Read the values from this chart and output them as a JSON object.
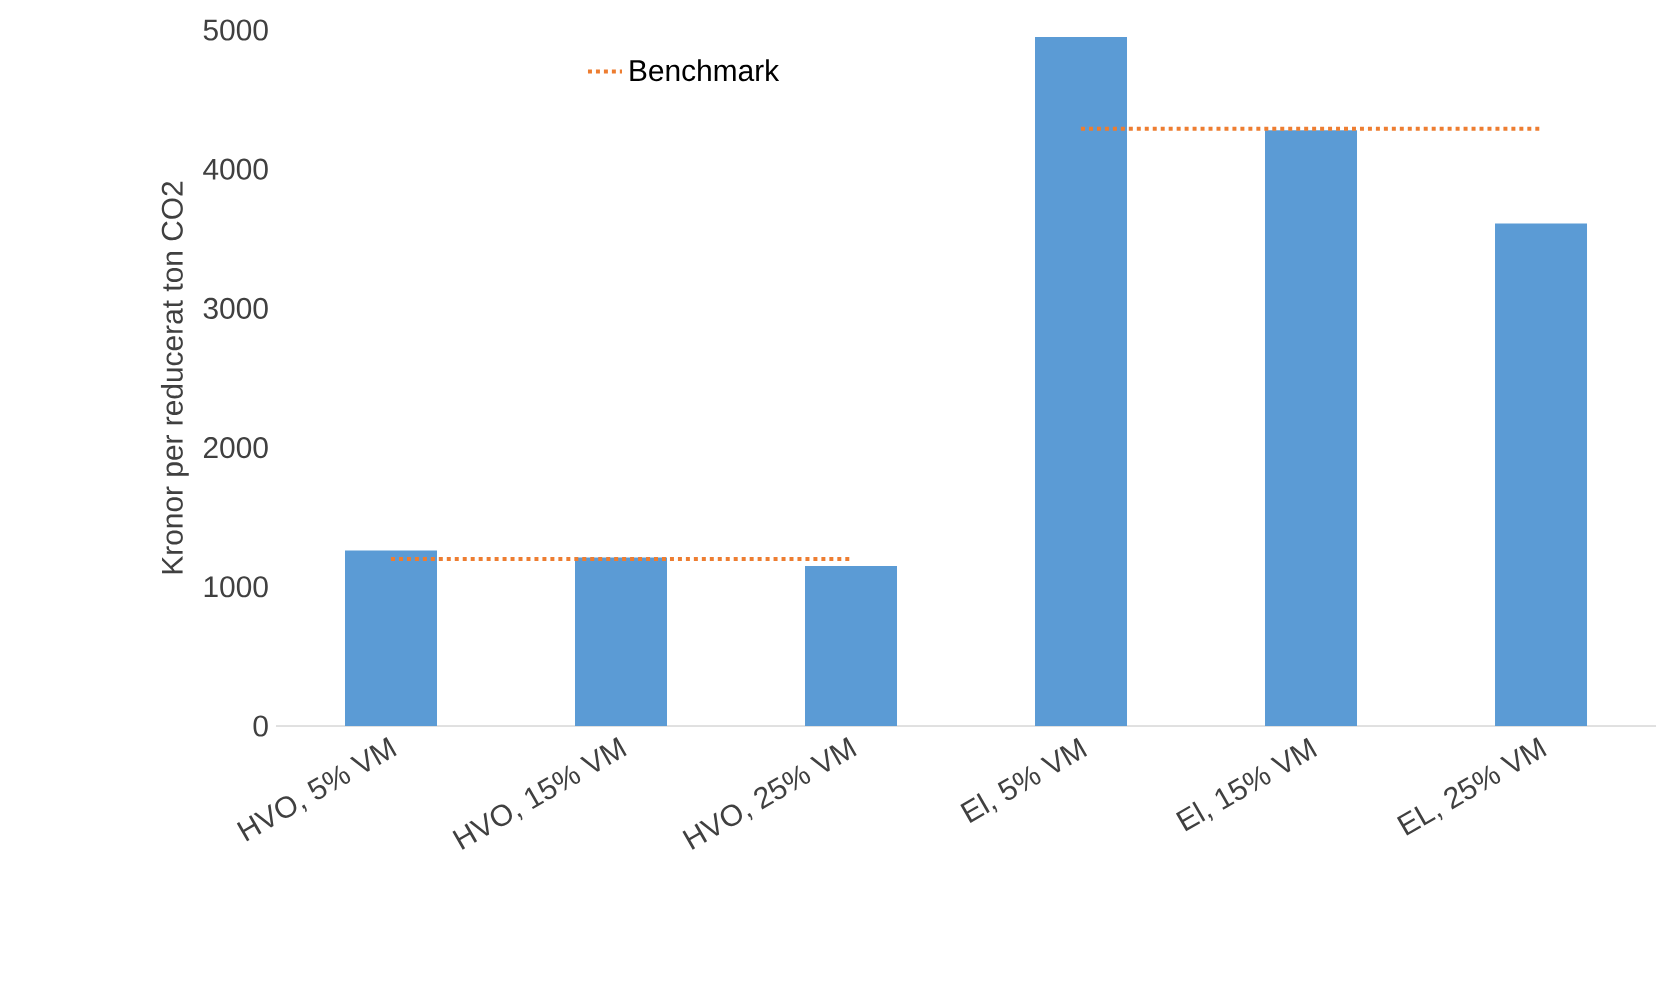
{
  "chart_data": {
    "type": "bar",
    "ylabel": "Kronor per reducerat ton CO2",
    "categories": [
      "HVO, 5% VM",
      "HVO, 15% VM",
      "HVO, 25% VM",
      "El, 5% VM",
      "El, 15% VM",
      "EL, 25% VM"
    ],
    "series": [
      {
        "color": "#5b9bd5",
        "values": [
          1260,
          1210,
          1150,
          4950,
          4280,
          3610
        ]
      },
      {
        "type": "line",
        "name": "Benchmark",
        "color": "#ed7d31",
        "line_style": "dotted",
        "values": [
          1200,
          1200,
          1200,
          null,
          null,
          null
        ]
      },
      {
        "type": "line",
        "color": "#ed7d31",
        "line_style": "dotted",
        "values": [
          null,
          null,
          null,
          4290,
          4290,
          4290
        ]
      }
    ],
    "ylim": [
      0,
      5000
    ],
    "yticks": [
      0,
      1000,
      2000,
      3000,
      4000,
      5000
    ],
    "grid": false,
    "legend": "top left"
  }
}
